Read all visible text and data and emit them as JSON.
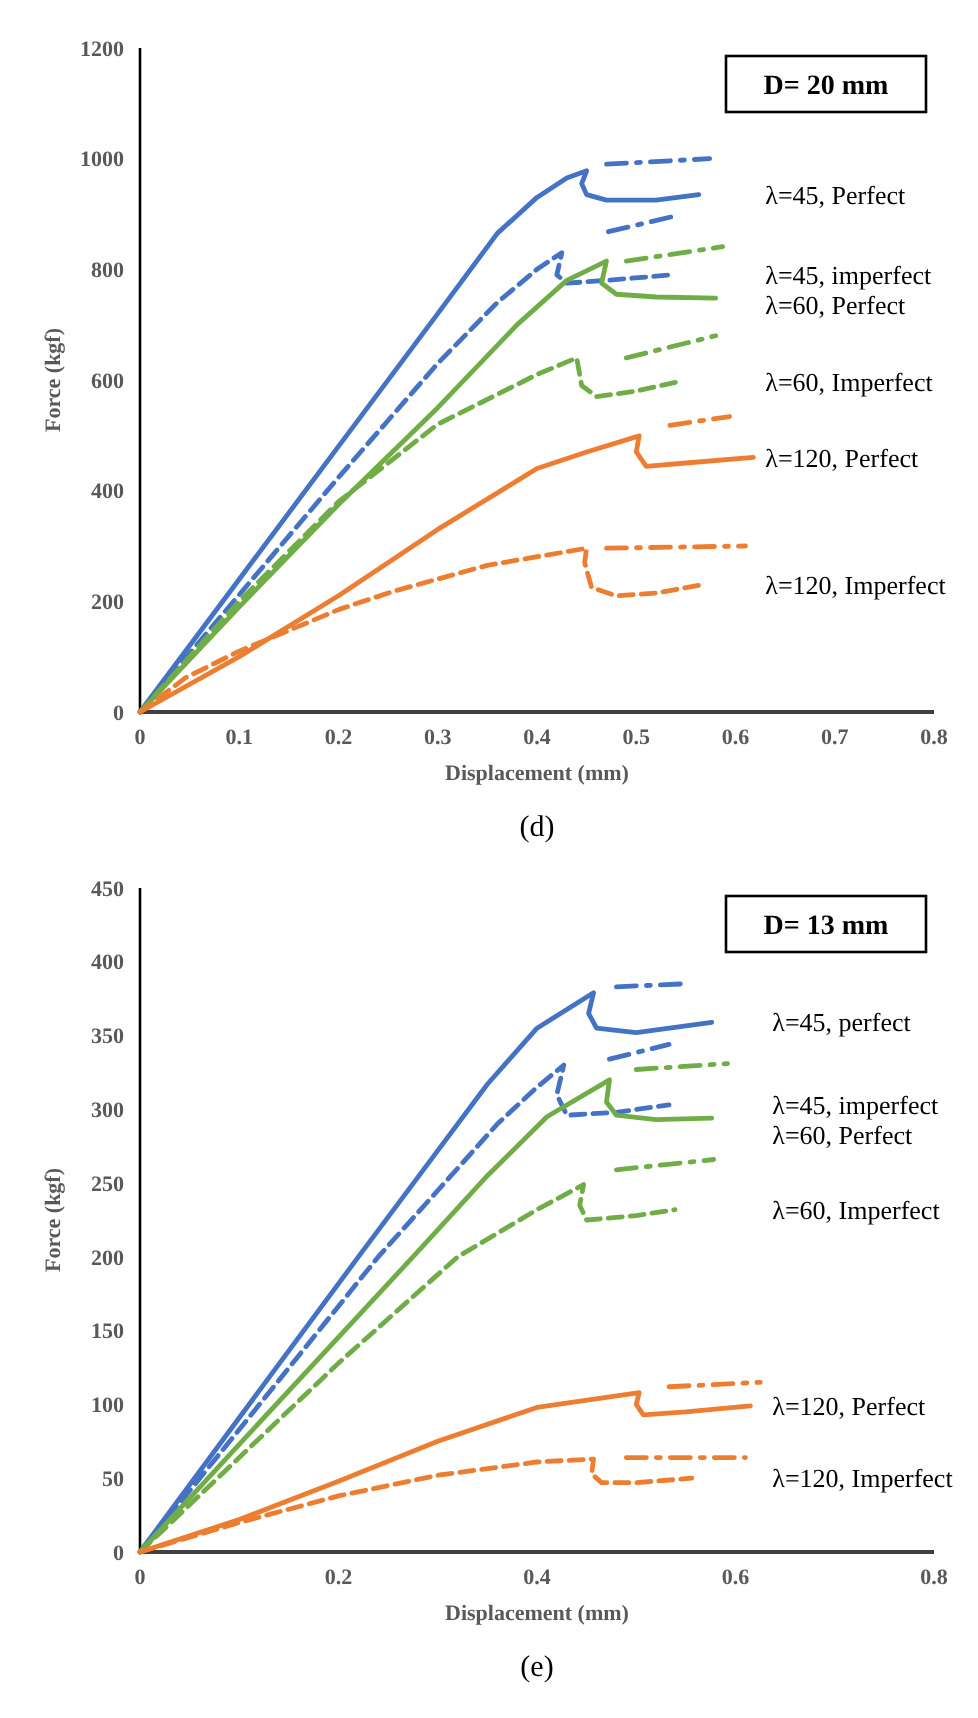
{
  "chart_data": [
    {
      "type": "line",
      "xlabel": "Displacement (mm)",
      "ylabel": "Force  (kgf)",
      "xlim": [
        0,
        0.8
      ],
      "ylim": [
        0,
        1200
      ],
      "xticks": [
        0,
        0.1,
        0.2,
        0.3,
        0.4,
        0.5,
        0.6,
        0.7,
        0.8
      ],
      "yticks": [
        0,
        200,
        400,
        600,
        800,
        1000,
        1200
      ],
      "grid": false,
      "annotations": [
        "D= 20 mm",
        "(d)"
      ],
      "series": [
        {
          "name": "λ=45, Perfect",
          "color": "#4472c4",
          "line_style": "solid",
          "x": [
            0,
            0.1,
            0.2,
            0.3,
            0.36,
            0.4,
            0.43,
            0.45,
            0.445,
            0.45,
            0.47,
            0.52,
            0.563
          ],
          "values": [
            0,
            240,
            480,
            720,
            865,
            930,
            965,
            978,
            955,
            935,
            925,
            925,
            935
          ]
        },
        {
          "color": "#4472c4",
          "line_style": "dotted",
          "x": [
            0.47,
            0.574
          ],
          "values": [
            990,
            1000
          ]
        },
        {
          "name": "λ=45, imperfect",
          "color": "#4472c4",
          "line_style": "dashed",
          "x": [
            0,
            0.1,
            0.2,
            0.3,
            0.36,
            0.4,
            0.425,
            0.42,
            0.43,
            0.47,
            0.535
          ],
          "values": [
            0,
            212,
            424,
            630,
            740,
            800,
            830,
            790,
            775,
            780,
            790
          ]
        },
        {
          "color": "#4472c4",
          "line_style": "dotted",
          "x": [
            0.472,
            0.538
          ],
          "values": [
            868,
            896
          ]
        },
        {
          "name": "λ=60, Perfect",
          "color": "#70ad47",
          "line_style": "solid",
          "x": [
            0,
            0.1,
            0.2,
            0.3,
            0.38,
            0.43,
            0.47,
            0.465,
            0.48,
            0.52,
            0.58
          ],
          "values": [
            0,
            190,
            375,
            550,
            700,
            780,
            815,
            775,
            755,
            750,
            748
          ]
        },
        {
          "color": "#70ad47",
          "line_style": "dotted",
          "x": [
            0.49,
            0.587
          ],
          "values": [
            815,
            841
          ]
        },
        {
          "name": "λ=60, Imperfect",
          "color": "#70ad47",
          "line_style": "dashed",
          "x": [
            0,
            0.1,
            0.2,
            0.3,
            0.4,
            0.44,
            0.445,
            0.46,
            0.5,
            0.54
          ],
          "values": [
            0,
            200,
            380,
            520,
            610,
            640,
            590,
            570,
            580,
            596
          ]
        },
        {
          "color": "#70ad47",
          "line_style": "dotted",
          "x": [
            0.49,
            0.58
          ],
          "values": [
            640,
            680
          ]
        },
        {
          "name": "λ=120, Perfect",
          "color": "#ed7d31",
          "line_style": "solid",
          "x": [
            0,
            0.1,
            0.2,
            0.3,
            0.4,
            0.45,
            0.503,
            0.5,
            0.51,
            0.55,
            0.618
          ],
          "values": [
            0,
            100,
            210,
            330,
            440,
            470,
            499,
            470,
            444,
            450,
            460
          ]
        },
        {
          "color": "#ed7d31",
          "line_style": "dotted",
          "x": [
            0.534,
            0.594
          ],
          "values": [
            518,
            534
          ]
        },
        {
          "name": "λ=120, Imperfect",
          "color": "#ed7d31",
          "line_style": "dashed",
          "x": [
            0,
            0.046,
            0.1,
            0.2,
            0.255,
            0.35,
            0.45,
            0.448,
            0.455,
            0.48,
            0.52,
            0.566
          ],
          "values": [
            0,
            62,
            110,
            185,
            218,
            265,
            296,
            270,
            225,
            210,
            215,
            230
          ]
        },
        {
          "color": "#ed7d31",
          "line_style": "dotted",
          "x": [
            0.47,
            0.61
          ],
          "values": [
            296,
            300
          ]
        }
      ]
    },
    {
      "type": "line",
      "xlabel": "Displacement (mm)",
      "ylabel": "Force  (kgf)",
      "xlim": [
        0,
        0.8
      ],
      "ylim": [
        0,
        450
      ],
      "xticks": [
        0,
        0.2,
        0.4,
        0.6,
        0.8
      ],
      "yticks": [
        0,
        50,
        100,
        150,
        200,
        250,
        300,
        350,
        400,
        450
      ],
      "grid": false,
      "annotations": [
        "D= 13 mm",
        "(e)"
      ],
      "series": [
        {
          "name": "λ=45, perfect",
          "color": "#4472c4",
          "line_style": "solid",
          "x": [
            0,
            0.1,
            0.22,
            0.3,
            0.35,
            0.4,
            0.457,
            0.452,
            0.46,
            0.5,
            0.576
          ],
          "values": [
            0,
            91,
            200,
            272,
            317,
            355,
            379,
            365,
            355,
            352,
            359
          ]
        },
        {
          "color": "#4472c4",
          "line_style": "dotted",
          "x": [
            0.48,
            0.546
          ],
          "values": [
            383,
            385
          ]
        },
        {
          "name": "λ=45, imperfect",
          "color": "#4472c4",
          "line_style": "dashed",
          "x": [
            0,
            0.1,
            0.24,
            0.3,
            0.36,
            0.4,
            0.427,
            0.42,
            0.43,
            0.48,
            0.533
          ],
          "values": [
            0,
            83,
            200,
            245,
            290,
            315,
            330,
            310,
            296,
            298,
            303
          ]
        },
        {
          "color": "#4472c4",
          "line_style": "dotted",
          "x": [
            0.473,
            0.533
          ],
          "values": [
            334,
            344
          ]
        },
        {
          "name": "λ=60, Perfect",
          "color": "#70ad47",
          "line_style": "solid",
          "x": [
            0,
            0.1,
            0.275,
            0.35,
            0.41,
            0.473,
            0.47,
            0.48,
            0.52,
            0.576
          ],
          "values": [
            0,
            73,
            200,
            255,
            295,
            320,
            305,
            296,
            293,
            294
          ]
        },
        {
          "color": "#70ad47",
          "line_style": "dotted",
          "x": [
            0.5,
            0.592
          ],
          "values": [
            327,
            331
          ]
        },
        {
          "name": "λ=60, Imperfect",
          "color": "#70ad47",
          "line_style": "dashed",
          "x": [
            0,
            0.1,
            0.2,
            0.32,
            0.4,
            0.447,
            0.443,
            0.45,
            0.5,
            0.539
          ],
          "values": [
            0,
            64,
            128,
            200,
            232,
            249,
            235,
            225,
            228,
            232
          ]
        },
        {
          "color": "#70ad47",
          "line_style": "dotted",
          "x": [
            0.48,
            0.578
          ],
          "values": [
            259,
            266
          ]
        },
        {
          "name": "λ=120, Perfect",
          "color": "#ed7d31",
          "line_style": "solid",
          "x": [
            0,
            0.1,
            0.2,
            0.3,
            0.4,
            0.503,
            0.5,
            0.507,
            0.55,
            0.615
          ],
          "values": [
            0,
            22,
            48,
            75,
            98,
            108,
            100,
            93,
            95,
            99
          ]
        },
        {
          "color": "#ed7d31",
          "line_style": "dotted",
          "x": [
            0.533,
            0.625
          ],
          "values": [
            112,
            115
          ]
        },
        {
          "name": "λ=120, Imperfect",
          "color": "#ed7d31",
          "line_style": "dashed",
          "x": [
            0,
            0.1,
            0.2,
            0.3,
            0.4,
            0.457,
            0.455,
            0.465,
            0.5,
            0.556
          ],
          "values": [
            0,
            20,
            38,
            52,
            61,
            63,
            53,
            47,
            47,
            50
          ]
        },
        {
          "color": "#ed7d31",
          "line_style": "dotted",
          "x": [
            0.49,
            0.61
          ],
          "values": [
            64,
            64
          ]
        }
      ]
    }
  ]
}
